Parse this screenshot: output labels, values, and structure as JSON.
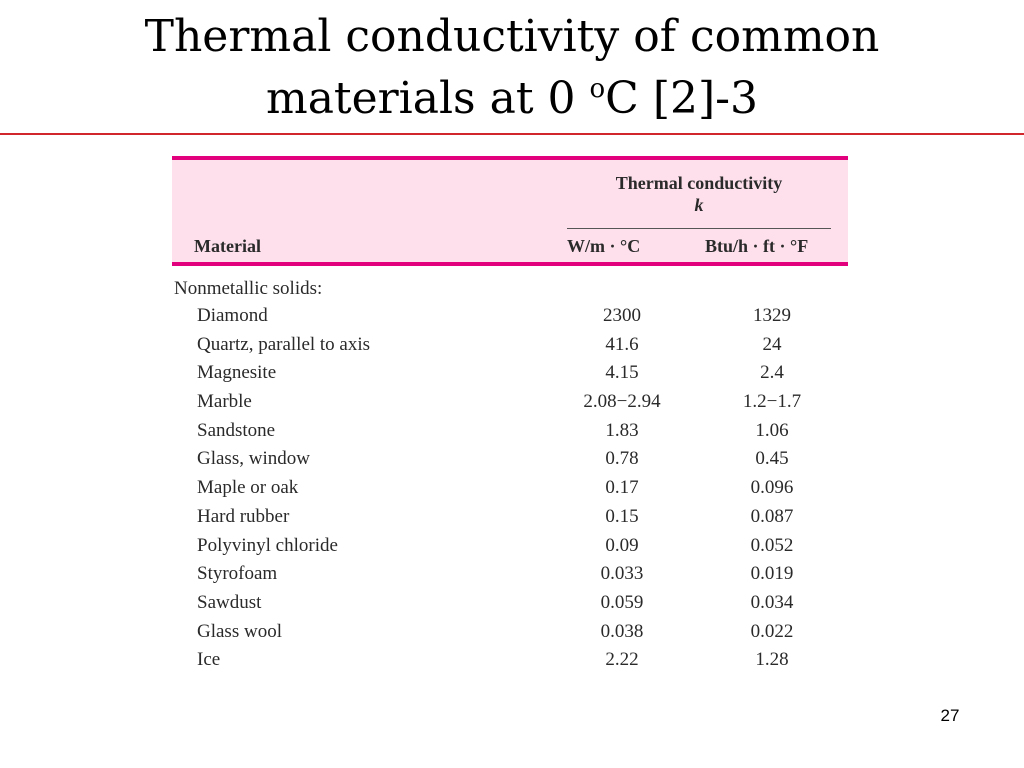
{
  "slide": {
    "title_line1": "Thermal  conductivity of common",
    "title_line2_pre": "materials at 0 ",
    "title_sup": "o",
    "title_line2_post": "C [2]-3",
    "page_number": "27",
    "accent_rule_color": "#d0262c"
  },
  "table": {
    "header_band_color": "#fde0ec",
    "header_border_color": "#e3007d",
    "group_header_line1": "Thermal conductivity",
    "group_header_line2": "k",
    "material_header": "Material",
    "unit_si": "W/m · °C",
    "unit_english": "Btu/h · ft · °F",
    "section_label": "Nonmetallic solids:",
    "rows": [
      {
        "material": "Diamond",
        "si": "2300",
        "english": "1329"
      },
      {
        "material": "Quartz, parallel to axis",
        "si": "41.6",
        "english": "24"
      },
      {
        "material": "Magnesite",
        "si": "4.15",
        "english": "2.4"
      },
      {
        "material": "Marble",
        "si": "2.08−2.94",
        "english": "1.2−1.7"
      },
      {
        "material": "Sandstone",
        "si": "1.83",
        "english": "1.06"
      },
      {
        "material": "Glass, window",
        "si": "0.78",
        "english": "0.45"
      },
      {
        "material": "Maple or oak",
        "si": "0.17",
        "english": "0.096"
      },
      {
        "material": "Hard rubber",
        "si": "0.15",
        "english": "0.087"
      },
      {
        "material": "Polyvinyl chloride",
        "si": "0.09",
        "english": "0.052"
      },
      {
        "material": "Styrofoam",
        "si": "0.033",
        "english": "0.019"
      },
      {
        "material": "Sawdust",
        "si": "0.059",
        "english": "0.034"
      },
      {
        "material": "Glass wool",
        "si": "0.038",
        "english": "0.022"
      },
      {
        "material": "Ice",
        "si": "2.22",
        "english": "1.28"
      }
    ]
  }
}
